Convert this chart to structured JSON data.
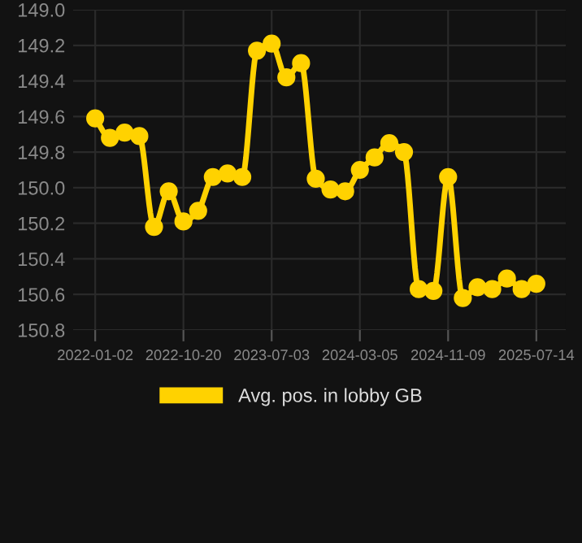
{
  "chart_data": {
    "type": "line",
    "categories": [
      "2022-01-02",
      null,
      null,
      null,
      null,
      null,
      "2022-10-20",
      null,
      null,
      null,
      null,
      null,
      "2023-07-03",
      null,
      null,
      null,
      null,
      null,
      "2024-03-05",
      null,
      null,
      null,
      null,
      null,
      "2024-11-09",
      null,
      null,
      null,
      null,
      null,
      "2025-07-14"
    ],
    "series": [
      {
        "name": "Avg. pos. in lobby GB",
        "color": "#ffd200",
        "values": [
          149.61,
          149.72,
          149.69,
          149.71,
          150.22,
          150.02,
          150.19,
          150.13,
          149.94,
          149.92,
          149.94,
          149.23,
          149.19,
          149.38,
          149.3,
          149.95,
          150.01,
          150.02,
          149.9,
          149.83,
          149.75,
          149.8,
          150.57,
          150.58,
          149.94,
          150.62,
          150.56,
          150.57,
          150.51,
          150.57,
          150.54
        ]
      }
    ],
    "ylim": [
      150.8,
      149.0
    ],
    "yticks": [
      {
        "value": 149.0,
        "label": "149.0"
      },
      149.2,
      149.4,
      149.6,
      149.8,
      {
        "value": 150.0,
        "label": "150.0"
      },
      150.2,
      150.4,
      150.6,
      150.8
    ],
    "grid": true,
    "legend": "bottom",
    "marker": "circle",
    "line_style": "solid"
  }
}
